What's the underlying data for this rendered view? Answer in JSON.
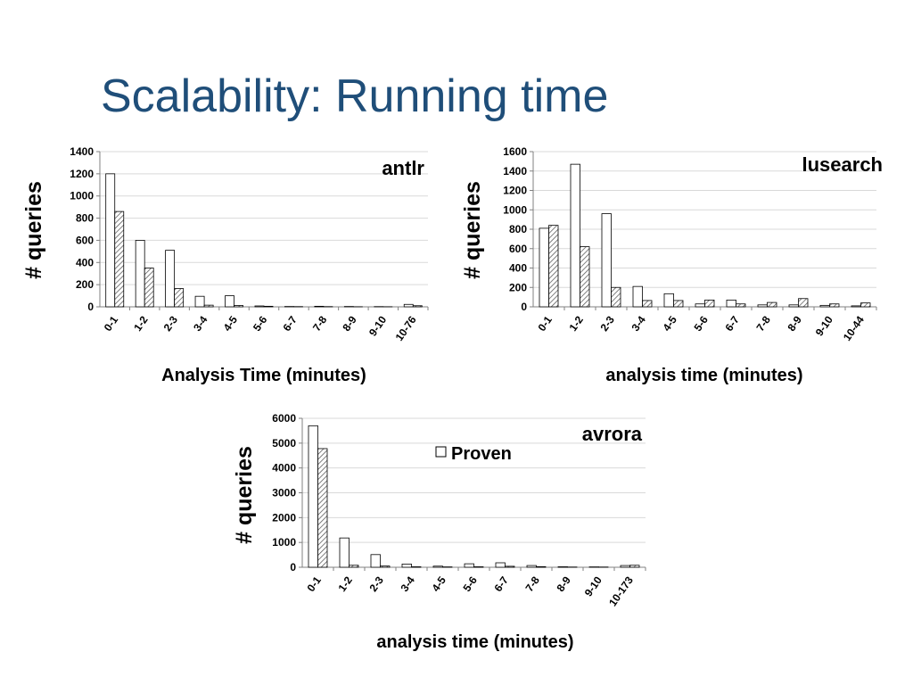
{
  "slide": {
    "title": "Scalability: Running time"
  },
  "chart_data": [
    {
      "type": "bar",
      "title": "antlr",
      "xlabel": "Analysis Time (minutes)",
      "ylabel": "# queries",
      "ylim": [
        0,
        1400
      ],
      "yticks": [
        0,
        200,
        400,
        600,
        800,
        1000,
        1200,
        1400
      ],
      "categories": [
        "0-1",
        "1-2",
        "2-3",
        "3-4",
        "4-5",
        "5-6",
        "6-7",
        "7-8",
        "8-9",
        "9-10",
        "10-76"
      ],
      "series": [
        {
          "values": [
            1200,
            600,
            510,
            95,
            100,
            8,
            3,
            5,
            3,
            2,
            22
          ],
          "fill": "white"
        },
        {
          "values": [
            860,
            350,
            165,
            15,
            12,
            5,
            2,
            2,
            1,
            1,
            10
          ],
          "fill": "hatched"
        }
      ],
      "grid": true
    },
    {
      "type": "bar",
      "title": "lusearch",
      "xlabel": "analysis time (minutes)",
      "ylabel": "# queries",
      "ylim": [
        0,
        1600
      ],
      "yticks": [
        0,
        200,
        400,
        600,
        800,
        1000,
        1200,
        1400,
        1600
      ],
      "categories": [
        "0-1",
        "1-2",
        "2-3",
        "3-4",
        "4-5",
        "5-6",
        "6-7",
        "7-8",
        "8-9",
        "9-10",
        "10-44"
      ],
      "series": [
        {
          "values": [
            810,
            1470,
            960,
            210,
            135,
            30,
            70,
            20,
            20,
            15,
            10
          ],
          "fill": "white"
        },
        {
          "values": [
            840,
            620,
            200,
            65,
            65,
            70,
            30,
            45,
            85,
            30,
            40
          ],
          "fill": "hatched"
        }
      ],
      "grid": true
    },
    {
      "type": "bar",
      "title": "avrora",
      "xlabel": "analysis time (minutes)",
      "ylabel": "# queries",
      "ylim": [
        0,
        6000
      ],
      "yticks": [
        0,
        1000,
        2000,
        3000,
        4000,
        5000,
        6000
      ],
      "categories": [
        "0-1",
        "1-2",
        "2-3",
        "3-4",
        "4-5",
        "5-6",
        "6-7",
        "7-8",
        "8-9",
        "9-10",
        "10-173"
      ],
      "series": [
        {
          "name": "Proven",
          "values": [
            5700,
            1180,
            510,
            130,
            45,
            140,
            180,
            70,
            20,
            15,
            70
          ],
          "fill": "white"
        },
        {
          "values": [
            4780,
            80,
            50,
            20,
            15,
            20,
            40,
            25,
            10,
            10,
            80
          ],
          "fill": "hatched"
        }
      ],
      "legend": {
        "position": "top-center",
        "entries": [
          "Proven"
        ]
      },
      "grid": true
    }
  ]
}
